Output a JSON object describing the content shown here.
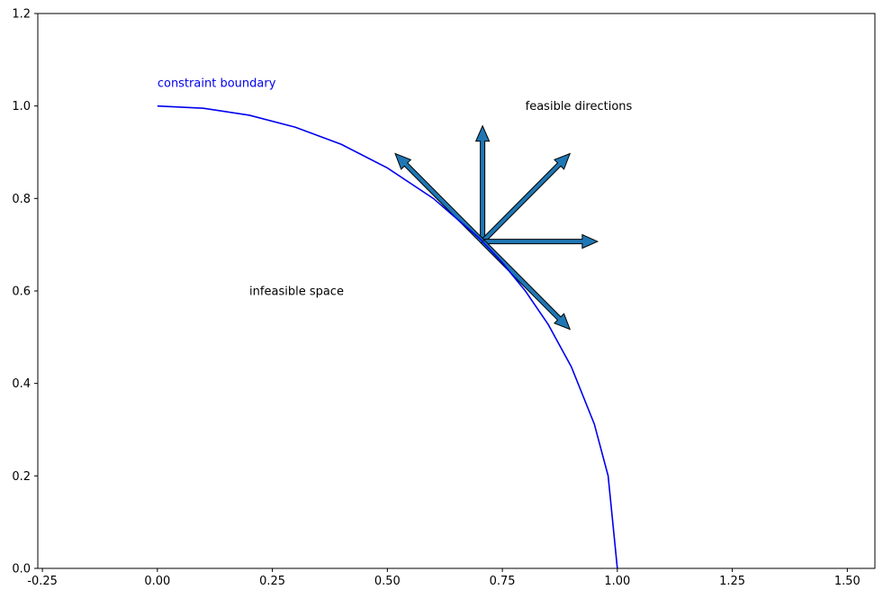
{
  "chart_data": {
    "type": "line",
    "title": "",
    "xlabel": "",
    "ylabel": "",
    "xlim": [
      -0.26,
      1.56
    ],
    "ylim": [
      0.0,
      1.2
    ],
    "grid": false,
    "xticks": [
      -0.25,
      0.0,
      0.25,
      0.5,
      0.75,
      1.0,
      1.25,
      1.5
    ],
    "xtick_labels": [
      "-0.25",
      "0.00",
      "0.25",
      "0.50",
      "0.75",
      "1.00",
      "1.25",
      "1.50"
    ],
    "yticks": [
      0.0,
      0.2,
      0.4,
      0.6,
      0.8,
      1.0,
      1.2
    ],
    "ytick_labels": [
      "0.0",
      "0.2",
      "0.4",
      "0.6",
      "0.8",
      "1.0",
      "1.2"
    ],
    "series": [
      {
        "color": "#0000ee",
        "x": [
          0.0,
          0.1,
          0.2,
          0.3,
          0.4,
          0.5,
          0.6,
          0.7,
          0.75,
          0.8,
          0.85,
          0.9,
          0.95,
          0.98,
          1.0
        ],
        "y": [
          1.0,
          0.995,
          0.98,
          0.954,
          0.917,
          0.866,
          0.8,
          0.714,
          0.661,
          0.6,
          0.527,
          0.436,
          0.312,
          0.2,
          0.0
        ]
      }
    ],
    "arrows": {
      "color": "#1f77b4",
      "origin": [
        0.707,
        0.707
      ],
      "items": [
        {
          "dx": 0.0,
          "dy": 0.25
        },
        {
          "dx": 0.19,
          "dy": 0.19
        },
        {
          "dx": 0.25,
          "dy": 0.0
        },
        {
          "dx": 0.19,
          "dy": -0.19
        },
        {
          "dx": -0.19,
          "dy": 0.19
        }
      ]
    },
    "annotations": [
      {
        "text": "constraint boundary",
        "x": 0.0,
        "y": 1.05,
        "color": "#0000ee"
      },
      {
        "text": "feasible directions",
        "x": 0.8,
        "y": 1.0,
        "color": "#000000"
      },
      {
        "text": "infeasible space",
        "x": 0.2,
        "y": 0.6,
        "color": "#000000"
      }
    ]
  }
}
